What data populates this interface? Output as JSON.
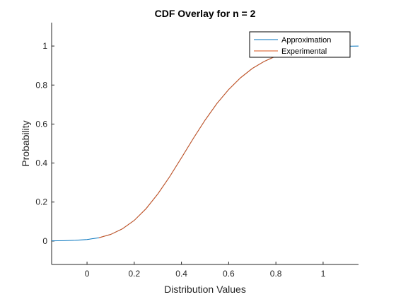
{
  "chart_data": {
    "type": "line",
    "title": "CDF Overlay for n = 2",
    "xlabel": "Distribution Values",
    "ylabel": "Probability",
    "xlim": [
      -0.15,
      1.15
    ],
    "ylim": [
      -0.12,
      1.12
    ],
    "xticks": [
      0,
      0.2,
      0.4,
      0.6,
      0.8,
      1
    ],
    "xtick_labels": [
      "0",
      "0.2",
      "0.4",
      "0.6",
      "0.8",
      "1"
    ],
    "yticks": [
      0,
      0.2,
      0.4,
      0.6,
      0.8,
      1
    ],
    "ytick_labels": [
      "0",
      "0.2",
      "0.4",
      "0.6",
      "0.8",
      "1"
    ],
    "grid": false,
    "legend_position": "top-right",
    "series": [
      {
        "name": "Approximation",
        "color": "#0072BD",
        "x": [
          -0.15,
          -0.1,
          -0.05,
          0,
          0.05,
          0.1,
          0.15,
          0.2,
          0.25,
          0.3,
          0.35,
          0.4,
          0.45,
          0.5,
          0.55,
          0.6,
          0.65,
          0.7,
          0.75,
          0.8,
          0.85,
          0.9,
          0.95,
          1,
          1.05,
          1.1,
          1.15
        ],
        "y": [
          0.001,
          0.002,
          0.004,
          0.008,
          0.017,
          0.034,
          0.063,
          0.106,
          0.166,
          0.242,
          0.33,
          0.427,
          0.526,
          0.62,
          0.705,
          0.777,
          0.837,
          0.885,
          0.921,
          0.948,
          0.967,
          0.98,
          0.989,
          0.995,
          0.998,
          0.999,
          1.0
        ]
      },
      {
        "name": "Experimental",
        "color": "#D95319",
        "x": [
          0.05,
          0.1,
          0.15,
          0.2,
          0.25,
          0.3,
          0.35,
          0.4,
          0.45,
          0.5,
          0.55,
          0.6,
          0.65,
          0.7,
          0.75,
          0.8,
          0.85,
          0.9,
          0.95,
          1
        ],
        "y": [
          0.017,
          0.034,
          0.063,
          0.106,
          0.166,
          0.242,
          0.33,
          0.427,
          0.526,
          0.62,
          0.705,
          0.777,
          0.837,
          0.885,
          0.921,
          0.948,
          0.967,
          0.98,
          0.989,
          0.995
        ]
      }
    ]
  }
}
